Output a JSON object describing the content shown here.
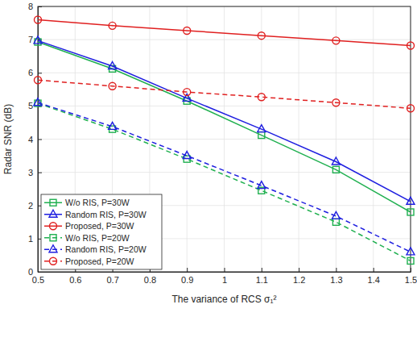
{
  "chart_data": {
    "type": "line",
    "x_label": "The variance of RCS σ₁²",
    "y_label": "Radar SNR (dB)",
    "x": [
      0.5,
      0.7,
      0.9,
      1.1,
      1.3,
      1.5
    ],
    "series": [
      {
        "name": "W/o RIS, P=30W",
        "color": "#20b050",
        "marker": "square",
        "line_style": "solid",
        "values": [
          6.93,
          6.12,
          5.15,
          4.12,
          3.08,
          1.8
        ]
      },
      {
        "name": "Random RIS, P=30W",
        "color": "#1f1fe0",
        "marker": "triangle",
        "line_style": "solid",
        "values": [
          6.97,
          6.2,
          5.23,
          4.3,
          3.32,
          2.12
        ]
      },
      {
        "name": "Proposed, P=30W",
        "color": "#e02020",
        "marker": "circle",
        "line_style": "solid",
        "values": [
          7.6,
          7.42,
          7.27,
          7.12,
          6.97,
          6.82
        ]
      },
      {
        "name": "W/o RIS, P=20W",
        "color": "#20b050",
        "marker": "square",
        "line_style": "dashed",
        "values": [
          5.08,
          4.3,
          3.4,
          2.45,
          1.5,
          0.33
        ]
      },
      {
        "name": "Random RIS, P=20W",
        "color": "#1f1fe0",
        "marker": "triangle",
        "line_style": "dashed",
        "values": [
          5.1,
          4.38,
          3.5,
          2.6,
          1.68,
          0.6
        ]
      },
      {
        "name": "Proposed, P=20W",
        "color": "#e02020",
        "marker": "circle",
        "line_style": "dashed",
        "values": [
          5.78,
          5.6,
          5.42,
          5.27,
          5.1,
          4.93
        ]
      }
    ],
    "xlim": [
      0.5,
      1.5
    ],
    "xticks": [
      0.5,
      0.6,
      0.7,
      0.8,
      0.9,
      1,
      1.1,
      1.2,
      1.3,
      1.4,
      1.5
    ],
    "ylim": [
      0,
      8
    ],
    "yticks": [
      0,
      1,
      2,
      3,
      4,
      5,
      6,
      7,
      8
    ],
    "grid": true,
    "legend": "lower left"
  }
}
